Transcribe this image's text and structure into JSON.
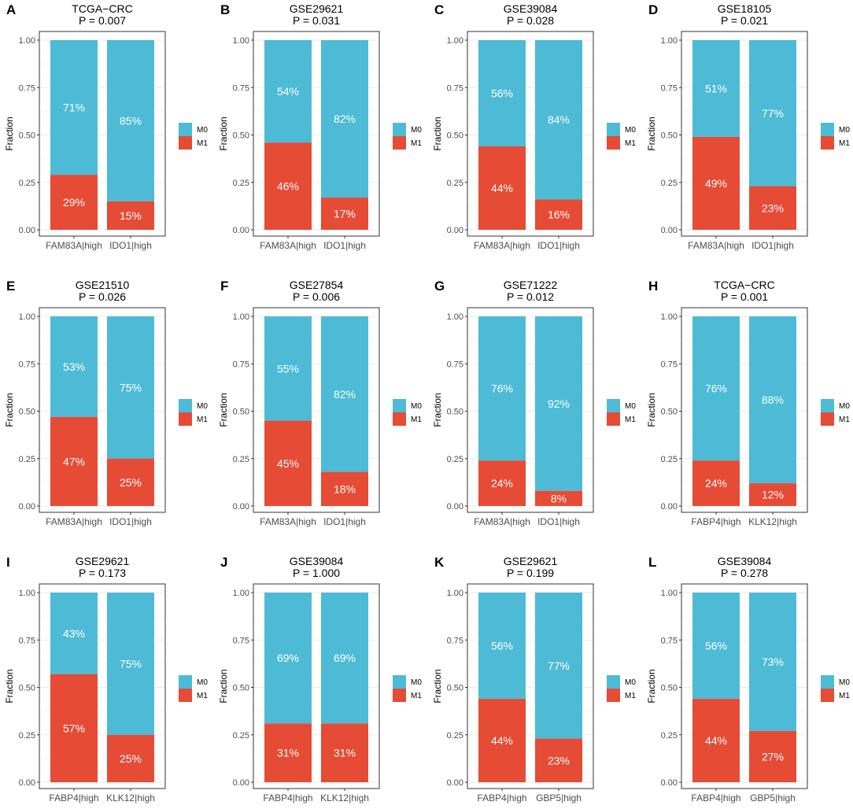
{
  "legend": {
    "entries": [
      {
        "label": "M0",
        "color": "#4DBBD5"
      },
      {
        "label": "M1",
        "color": "#E64B35"
      }
    ]
  },
  "axis": {
    "ylabel": "Fraction",
    "yticks": [
      "0.00",
      "0.25",
      "0.50",
      "0.75",
      "1.00"
    ]
  },
  "chart_data": [
    {
      "panel": "A",
      "type": "bar",
      "stacked": true,
      "title": "TCGA−CRC",
      "subtitle": "P = 0.007",
      "categories": [
        "FAM83A|high",
        "IDO1|high"
      ],
      "series": [
        {
          "name": "M0",
          "values": [
            0.71,
            0.85
          ],
          "labels": [
            "71%",
            "85%"
          ]
        },
        {
          "name": "M1",
          "values": [
            0.29,
            0.15
          ],
          "labels": [
            "29%",
            "15%"
          ]
        }
      ],
      "ylabel": "Fraction",
      "ylim": [
        0,
        1
      ]
    },
    {
      "panel": "B",
      "type": "bar",
      "stacked": true,
      "title": "GSE29621",
      "subtitle": "P = 0.031",
      "categories": [
        "FAM83A|high",
        "IDO1|high"
      ],
      "series": [
        {
          "name": "M0",
          "values": [
            0.54,
            0.82
          ],
          "labels": [
            "54%",
            "82%"
          ]
        },
        {
          "name": "M1",
          "values": [
            0.46,
            0.17
          ],
          "labels": [
            "46%",
            "17%"
          ]
        }
      ],
      "ylabel": "Fraction",
      "ylim": [
        0,
        1
      ]
    },
    {
      "panel": "C",
      "type": "bar",
      "stacked": true,
      "title": "GSE39084",
      "subtitle": "P = 0.028",
      "categories": [
        "FAM83A|high",
        "IDO1|high"
      ],
      "series": [
        {
          "name": "M0",
          "values": [
            0.56,
            0.84
          ],
          "labels": [
            "56%",
            "84%"
          ]
        },
        {
          "name": "M1",
          "values": [
            0.44,
            0.16
          ],
          "labels": [
            "44%",
            "16%"
          ]
        }
      ],
      "ylabel": "Fraction",
      "ylim": [
        0,
        1
      ]
    },
    {
      "panel": "D",
      "type": "bar",
      "stacked": true,
      "title": "GSE18105",
      "subtitle": "P = 0.021",
      "categories": [
        "FAM83A|high",
        "IDO1|high"
      ],
      "series": [
        {
          "name": "M0",
          "values": [
            0.51,
            0.77
          ],
          "labels": [
            "51%",
            "77%"
          ]
        },
        {
          "name": "M1",
          "values": [
            0.49,
            0.23
          ],
          "labels": [
            "49%",
            "23%"
          ]
        }
      ],
      "ylabel": "Fraction",
      "ylim": [
        0,
        1
      ]
    },
    {
      "panel": "E",
      "type": "bar",
      "stacked": true,
      "title": "GSE21510",
      "subtitle": "P = 0.026",
      "categories": [
        "FAM83A|high",
        "IDO1|high"
      ],
      "series": [
        {
          "name": "M0",
          "values": [
            0.53,
            0.75
          ],
          "labels": [
            "53%",
            "75%"
          ]
        },
        {
          "name": "M1",
          "values": [
            0.47,
            0.25
          ],
          "labels": [
            "47%",
            "25%"
          ]
        }
      ],
      "ylabel": "Fraction",
      "ylim": [
        0,
        1
      ]
    },
    {
      "panel": "F",
      "type": "bar",
      "stacked": true,
      "title": "GSE27854",
      "subtitle": "P = 0.006",
      "categories": [
        "FAM83A|high",
        "IDO1|high"
      ],
      "series": [
        {
          "name": "M0",
          "values": [
            0.55,
            0.82
          ],
          "labels": [
            "55%",
            "82%"
          ]
        },
        {
          "name": "M1",
          "values": [
            0.45,
            0.18
          ],
          "labels": [
            "45%",
            "18%"
          ]
        }
      ],
      "ylabel": "Fraction",
      "ylim": [
        0,
        1
      ]
    },
    {
      "panel": "G",
      "type": "bar",
      "stacked": true,
      "title": "GSE71222",
      "subtitle": "P = 0.012",
      "categories": [
        "FAM83A|high",
        "IDO1|high"
      ],
      "series": [
        {
          "name": "M0",
          "values": [
            0.76,
            0.92
          ],
          "labels": [
            "76%",
            "92%"
          ]
        },
        {
          "name": "M1",
          "values": [
            0.24,
            0.08
          ],
          "labels": [
            "24%",
            "8%"
          ]
        }
      ],
      "ylabel": "Fraction",
      "ylim": [
        0,
        1
      ]
    },
    {
      "panel": "H",
      "type": "bar",
      "stacked": true,
      "title": "TCGA−CRC",
      "subtitle": "P = 0.001",
      "categories": [
        "FABP4|high",
        "KLK12|high"
      ],
      "series": [
        {
          "name": "M0",
          "values": [
            0.76,
            0.88
          ],
          "labels": [
            "76%",
            "88%"
          ]
        },
        {
          "name": "M1",
          "values": [
            0.24,
            0.12
          ],
          "labels": [
            "24%",
            "12%"
          ]
        }
      ],
      "ylabel": "Fraction",
      "ylim": [
        0,
        1
      ]
    },
    {
      "panel": "I",
      "type": "bar",
      "stacked": true,
      "title": "GSE29621",
      "subtitle": "P = 0.173",
      "categories": [
        "FABP4|high",
        "KLK12|high"
      ],
      "series": [
        {
          "name": "M0",
          "values": [
            0.43,
            0.75
          ],
          "labels": [
            "43%",
            "75%"
          ]
        },
        {
          "name": "M1",
          "values": [
            0.57,
            0.25
          ],
          "labels": [
            "57%",
            "25%"
          ]
        }
      ],
      "ylabel": "Fraction",
      "ylim": [
        0,
        1
      ]
    },
    {
      "panel": "J",
      "type": "bar",
      "stacked": true,
      "title": "GSE39084",
      "subtitle": "P = 1.000",
      "categories": [
        "FABP4|high",
        "KLK12|high"
      ],
      "series": [
        {
          "name": "M0",
          "values": [
            0.69,
            0.69
          ],
          "labels": [
            "69%",
            "69%"
          ]
        },
        {
          "name": "M1",
          "values": [
            0.31,
            0.31
          ],
          "labels": [
            "31%",
            "31%"
          ]
        }
      ],
      "ylabel": "Fraction",
      "ylim": [
        0,
        1
      ]
    },
    {
      "panel": "K",
      "type": "bar",
      "stacked": true,
      "title": "GSE29621",
      "subtitle": "P = 0.199",
      "categories": [
        "FABP4|high",
        "GBP5|high"
      ],
      "series": [
        {
          "name": "M0",
          "values": [
            0.56,
            0.77
          ],
          "labels": [
            "56%",
            "77%"
          ]
        },
        {
          "name": "M1",
          "values": [
            0.44,
            0.23
          ],
          "labels": [
            "44%",
            "23%"
          ]
        }
      ],
      "ylabel": "Fraction",
      "ylim": [
        0,
        1
      ]
    },
    {
      "panel": "L",
      "type": "bar",
      "stacked": true,
      "title": "GSE39084",
      "subtitle": "P = 0.278",
      "categories": [
        "FABP4|high",
        "GBP5|high"
      ],
      "series": [
        {
          "name": "M0",
          "values": [
            0.56,
            0.73
          ],
          "labels": [
            "56%",
            "73%"
          ]
        },
        {
          "name": "M1",
          "values": [
            0.44,
            0.27
          ],
          "labels": [
            "44%",
            "27%"
          ]
        }
      ],
      "ylabel": "Fraction",
      "ylim": [
        0,
        1
      ]
    }
  ]
}
